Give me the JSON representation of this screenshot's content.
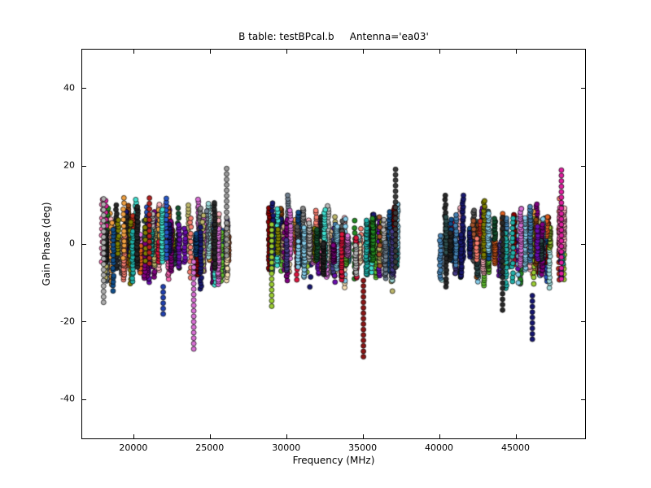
{
  "chart_data": {
    "type": "scatter",
    "title": "B table: testBPcal.b     Antenna='ea03'",
    "xlabel": "Frequency (MHz)",
    "ylabel": "Gain Phase (deg)",
    "xlim": [
      16600,
      49500
    ],
    "ylim": [
      -50,
      50
    ],
    "x_ticks": [
      20000,
      25000,
      30000,
      35000,
      40000,
      45000
    ],
    "y_ticks": [
      -40,
      -20,
      0,
      20,
      40
    ],
    "grid": false,
    "legend": "none",
    "marker": {
      "shape": "circle",
      "radius_px": 3,
      "edge_color": "#000000"
    },
    "seed": 42,
    "bands": [
      {
        "x_min": 17900,
        "x_max": 26200,
        "columns": 95,
        "center_range": 4.5,
        "spread_min": 2,
        "spread_max": 8.5
      },
      {
        "x_min": 28800,
        "x_max": 37300,
        "columns": 95,
        "center_range": 4.5,
        "spread_min": 2,
        "spread_max": 8.5
      },
      {
        "x_min": 39900,
        "x_max": 48300,
        "columns": 95,
        "center_range": 4.5,
        "spread_min": 2,
        "spread_max": 8.5
      }
    ],
    "feature_columns": [
      {
        "x": 23900,
        "color": "#da70d6",
        "y_min": -27,
        "y_max": -4
      },
      {
        "x": 35000,
        "color": "#8b1515",
        "y_min": -29,
        "y_max": -9
      },
      {
        "x": 46050,
        "color": "#151570",
        "y_min": -24.5,
        "y_max": -13
      },
      {
        "x": 47950,
        "color": "#e020a0",
        "y_min": -9,
        "y_max": 19
      },
      {
        "x": 26050,
        "color": "#9a9a9a",
        "y_min": -3,
        "y_max": 20.5
      },
      {
        "x": 37100,
        "color": "#3a3a3a",
        "y_min": -6,
        "y_max": 20
      },
      {
        "x": 21900,
        "color": "#2040b0",
        "y_min": -18,
        "y_max": -11
      },
      {
        "x": 18000,
        "color": "#b0b0b0",
        "y_min": -15,
        "y_max": 12
      },
      {
        "x": 29000,
        "color": "#9acd32",
        "y_min": -16,
        "y_max": 5
      },
      {
        "x": 44100,
        "color": "#282828",
        "y_min": -17,
        "y_max": 8
      },
      {
        "x": 21000,
        "color": "#b22222",
        "y_min": -5,
        "y_max": 13
      }
    ],
    "palette": [
      "#b8b8b8",
      "#888888",
      "#585858",
      "#282828",
      "#8b0000",
      "#c03020",
      "#e06020",
      "#f0a040",
      "#f5deb3",
      "#d2b48c",
      "#a0522d",
      "#8b4513",
      "#808000",
      "#bdb76b",
      "#9acd32",
      "#60c030",
      "#228b22",
      "#145230",
      "#20b2aa",
      "#40e0d0",
      "#a0dcdc",
      "#87ceeb",
      "#4682b4",
      "#2858c8",
      "#191970",
      "#483d8b",
      "#6a0dad",
      "#800080",
      "#da70d6",
      "#ee82ee",
      "#e020a0",
      "#ff69b4",
      "#ffb6c1",
      "#fa8072",
      "#dc143c",
      "#708090",
      "#2f4f4f",
      "#104e8b"
    ]
  }
}
